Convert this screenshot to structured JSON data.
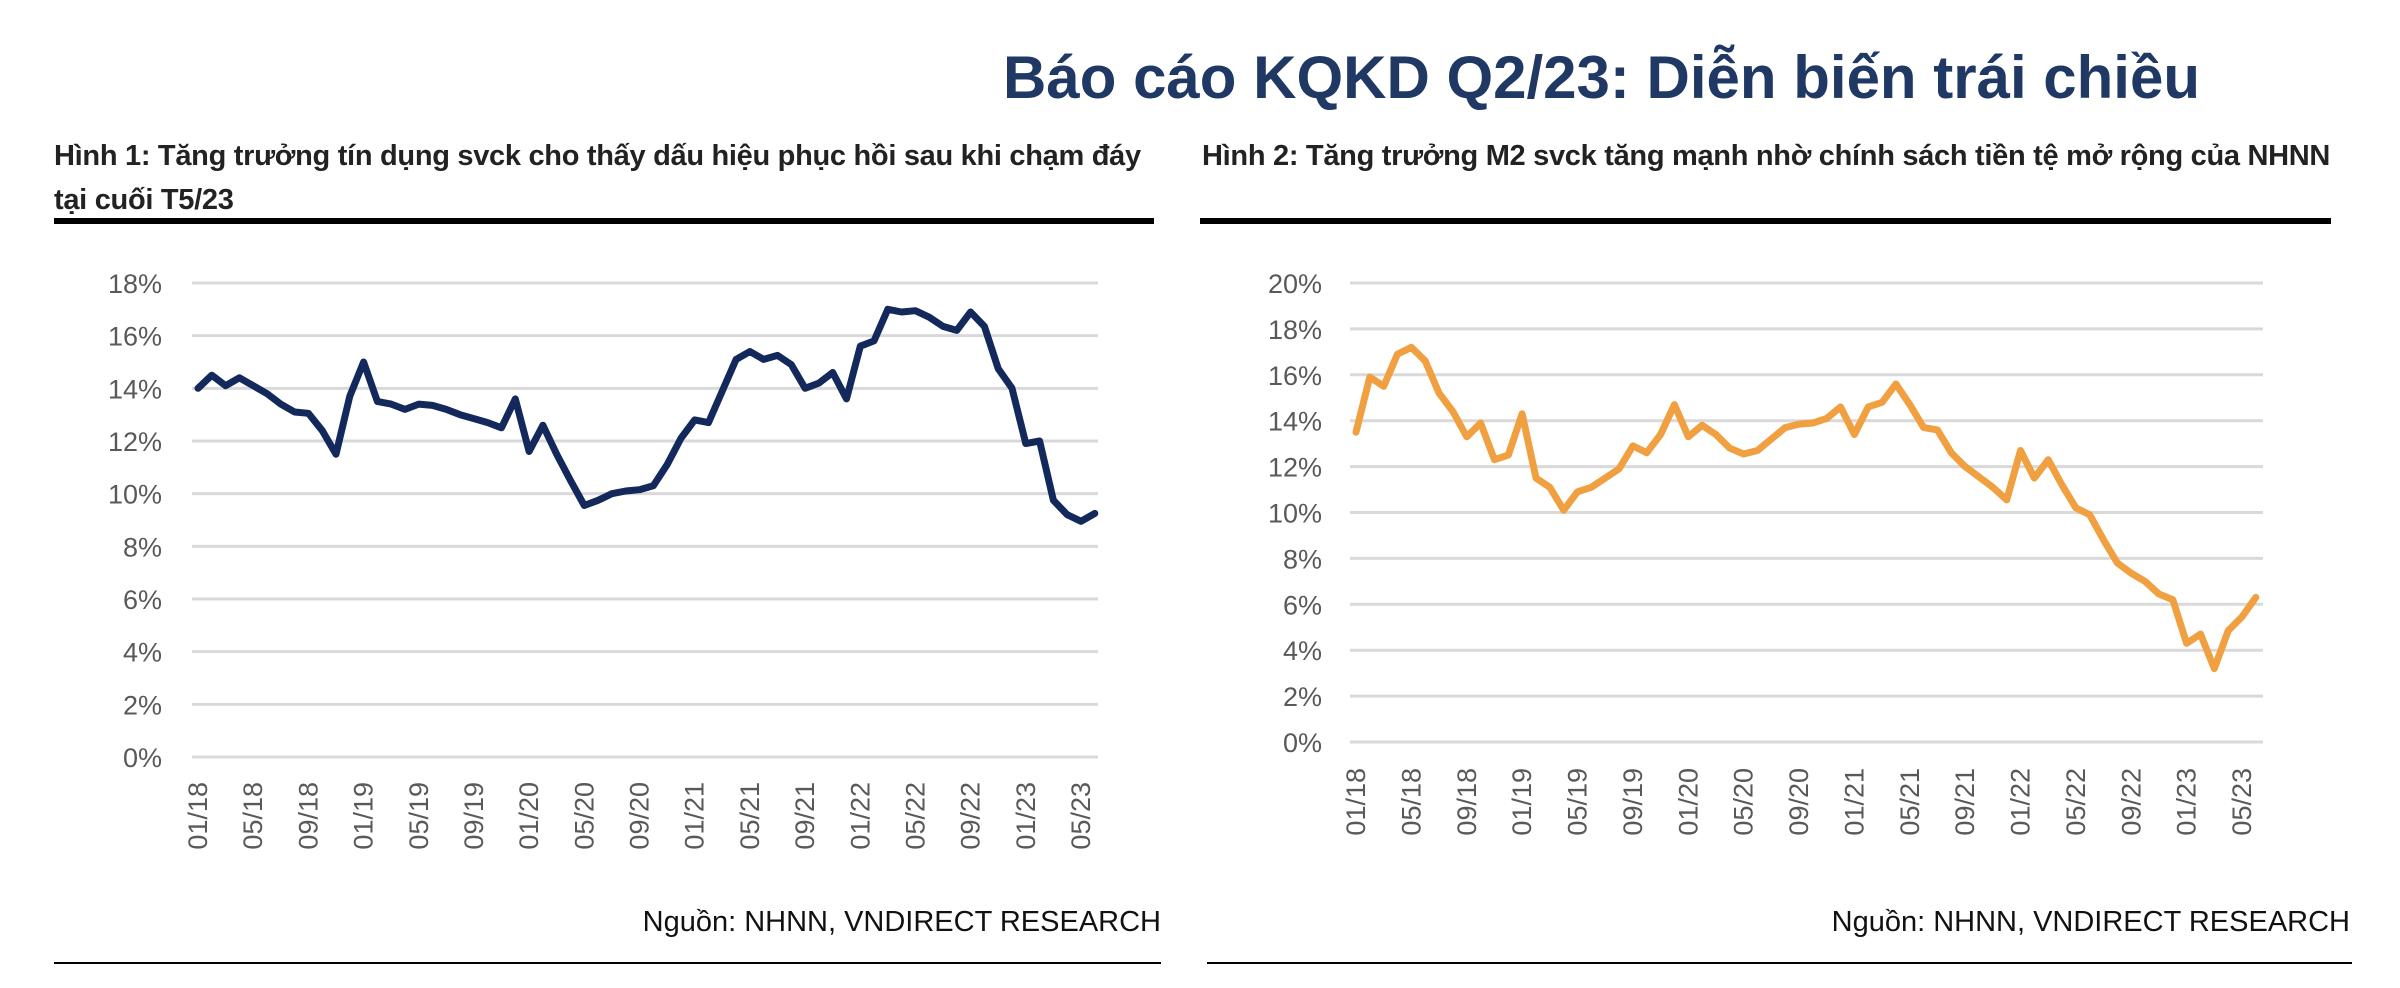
{
  "title": "Báo cáo KQKD Q2/23: Diễn biến trái chiều",
  "figures": [
    {
      "caption": "Hình 1: Tăng trưởng tín dụng svck cho thấy dấu hiệu phục hồi sau khi chạm đáy tại cuối T5/23",
      "source": "Nguồn: NHNN, VNDIRECT RESEARCH"
    },
    {
      "caption": "Hình 2: Tăng trưởng M2 svck tăng mạnh nhờ chính sách tiền tệ mở rộng của NHNN",
      "source": "Nguồn: NHNN, VNDIRECT RESEARCH"
    }
  ],
  "chart_data": [
    {
      "type": "line",
      "color": "#13295b",
      "ylim": [
        0,
        18
      ],
      "y_ticks": [
        "0%",
        "2%",
        "4%",
        "6%",
        "8%",
        "10%",
        "12%",
        "14%",
        "16%",
        "18%"
      ],
      "x_ticks": [
        "01/18",
        "05/18",
        "09/18",
        "01/19",
        "05/19",
        "09/19",
        "01/20",
        "05/20",
        "09/20",
        "01/21",
        "05/21",
        "09/21",
        "01/22",
        "05/22",
        "09/22",
        "01/23",
        "05/23"
      ],
      "grid": true,
      "x": [
        "01/18",
        "02/18",
        "03/18",
        "04/18",
        "05/18",
        "06/18",
        "07/18",
        "08/18",
        "09/18",
        "10/18",
        "11/18",
        "12/18",
        "01/19",
        "02/19",
        "03/19",
        "04/19",
        "05/19",
        "06/19",
        "07/19",
        "08/19",
        "09/19",
        "10/19",
        "11/19",
        "12/19",
        "01/20",
        "02/20",
        "03/20",
        "04/20",
        "05/20",
        "06/20",
        "07/20",
        "08/20",
        "09/20",
        "10/20",
        "11/20",
        "12/20",
        "01/21",
        "02/21",
        "03/21",
        "04/21",
        "05/21",
        "06/21",
        "07/21",
        "08/21",
        "09/21",
        "10/21",
        "11/21",
        "12/21",
        "01/22",
        "02/22",
        "03/22",
        "04/22",
        "05/22",
        "06/22",
        "07/22",
        "08/22",
        "09/22",
        "10/22",
        "11/22",
        "12/22",
        "01/23",
        "02/23",
        "03/23",
        "04/23",
        "05/23",
        "06/23"
      ],
      "values": [
        14.0,
        14.5,
        14.1,
        14.4,
        14.1,
        13.8,
        13.4,
        13.1,
        13.05,
        12.4,
        11.5,
        13.7,
        15.0,
        13.5,
        13.4,
        13.2,
        13.4,
        13.35,
        13.2,
        13.0,
        12.85,
        12.7,
        12.5,
        13.6,
        11.6,
        12.6,
        11.5,
        10.5,
        9.55,
        9.75,
        10.0,
        10.1,
        10.15,
        10.3,
        11.1,
        12.1,
        12.8,
        12.7,
        13.9,
        15.1,
        15.4,
        15.1,
        15.25,
        14.9,
        14.0,
        14.2,
        14.6,
        13.6,
        15.6,
        15.8,
        17.0,
        16.9,
        16.95,
        16.7,
        16.35,
        16.2,
        16.9,
        16.35,
        14.75,
        14.0,
        11.9,
        12.0,
        9.75,
        9.2,
        8.95,
        9.25
      ]
    },
    {
      "type": "line",
      "color": "#f0a040",
      "ylim": [
        0,
        20
      ],
      "y_ticks": [
        "0%",
        "2%",
        "4%",
        "6%",
        "8%",
        "10%",
        "12%",
        "14%",
        "16%",
        "18%",
        "20%"
      ],
      "x_ticks": [
        "01/18",
        "05/18",
        "09/18",
        "01/19",
        "05/19",
        "09/19",
        "01/20",
        "05/20",
        "09/20",
        "01/21",
        "05/21",
        "09/21",
        "01/22",
        "05/22",
        "09/22",
        "01/23",
        "05/23"
      ],
      "grid": true,
      "x": [
        "01/18",
        "02/18",
        "03/18",
        "04/18",
        "05/18",
        "06/18",
        "07/18",
        "08/18",
        "09/18",
        "10/18",
        "11/18",
        "12/18",
        "01/19",
        "02/19",
        "03/19",
        "04/19",
        "05/19",
        "06/19",
        "07/19",
        "08/19",
        "09/19",
        "10/19",
        "11/19",
        "12/19",
        "01/20",
        "02/20",
        "03/20",
        "04/20",
        "05/20",
        "06/20",
        "07/20",
        "08/20",
        "09/20",
        "10/20",
        "11/20",
        "12/20",
        "01/21",
        "02/21",
        "03/21",
        "04/21",
        "05/21",
        "06/21",
        "07/21",
        "08/21",
        "09/21",
        "10/21",
        "11/21",
        "12/21",
        "01/22",
        "02/22",
        "03/22",
        "04/22",
        "05/22",
        "06/22",
        "07/22",
        "08/22",
        "09/22",
        "10/22",
        "11/22",
        "12/22",
        "01/23",
        "02/23",
        "03/23",
        "04/23",
        "05/23",
        "06/23"
      ],
      "values": [
        13.5,
        15.9,
        15.5,
        16.9,
        17.2,
        16.6,
        15.2,
        14.4,
        13.3,
        13.9,
        12.3,
        12.5,
        14.3,
        11.5,
        11.1,
        10.1,
        10.9,
        11.1,
        11.5,
        11.9,
        12.9,
        12.6,
        13.4,
        14.7,
        13.3,
        13.8,
        13.4,
        12.8,
        12.55,
        12.7,
        13.2,
        13.7,
        13.85,
        13.9,
        14.1,
        14.6,
        13.4,
        14.6,
        14.8,
        15.6,
        14.7,
        13.7,
        13.6,
        12.6,
        12.0,
        11.55,
        11.1,
        10.55,
        12.7,
        11.5,
        12.3,
        11.2,
        10.2,
        9.9,
        8.8,
        7.8,
        7.35,
        7.0,
        6.45,
        6.2,
        4.3,
        4.7,
        3.2,
        4.85,
        5.45,
        6.3
      ]
    }
  ]
}
